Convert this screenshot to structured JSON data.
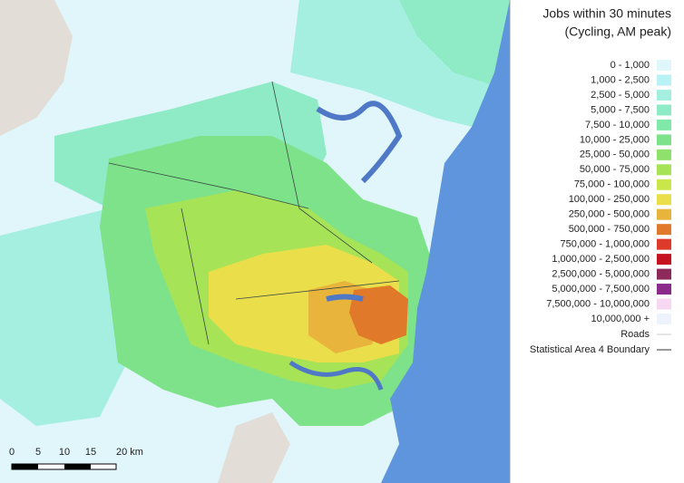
{
  "legend": {
    "title": [
      "Jobs within 30 minutes",
      "(Cycling, AM peak)"
    ],
    "items": [
      {
        "label": "0 - 1,000",
        "color": "#dff7fa"
      },
      {
        "label": "1,000 - 2,500",
        "color": "#b9f2f5"
      },
      {
        "label": "2,500 - 5,000",
        "color": "#a5efe0"
      },
      {
        "label": "5,000 - 7,500",
        "color": "#8febc5"
      },
      {
        "label": "7,500 - 10,000",
        "color": "#80e8a8"
      },
      {
        "label": "10,000 - 25,000",
        "color": "#7de28a"
      },
      {
        "label": "25,000 - 50,000",
        "color": "#8ee16a"
      },
      {
        "label": "50,000 - 75,000",
        "color": "#a6e356"
      },
      {
        "label": "75,000 - 100,000",
        "color": "#c9e64a"
      },
      {
        "label": "100,000 - 250,000",
        "color": "#eadf4a"
      },
      {
        "label": "250,000 - 500,000",
        "color": "#e8b43c"
      },
      {
        "label": "500,000 - 750,000",
        "color": "#e07a2a"
      },
      {
        "label": "750,000 - 1,000,000",
        "color": "#de3a2a"
      },
      {
        "label": "1,000,000 - 2,500,000",
        "color": "#c4121e"
      },
      {
        "label": "2,500,000 - 5,000,000",
        "color": "#8e2a5a"
      },
      {
        "label": "5,000,000 - 7,500,000",
        "color": "#8a2a8a"
      },
      {
        "label": "7,500,000 - 10,000,000",
        "color": "#f7d8f2"
      },
      {
        "label": "10,000,000 +",
        "color": "#eef2fb"
      }
    ],
    "roads": "Roads",
    "boundary": "Statistical Area 4 Boundary"
  },
  "scale_bar": {
    "labels": [
      "0",
      "5",
      "10",
      "15",
      "20 km"
    ]
  }
}
